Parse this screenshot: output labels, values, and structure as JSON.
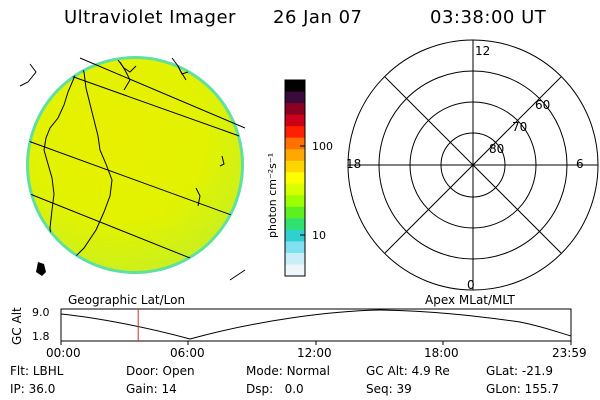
{
  "header": {
    "title": "Ultraviolet Imager",
    "date": "26 Jan 07",
    "time": "03:38:00 UT"
  },
  "colorbar": {
    "unit_label": "photon cm⁻²s⁻¹",
    "tick_labels": [
      "100",
      "10"
    ],
    "colors": [
      "#000000",
      "#3a0a3a",
      "#8a0020",
      "#cc0018",
      "#ff2000",
      "#ff7000",
      "#ffa800",
      "#ffd600",
      "#ffff00",
      "#d6ff00",
      "#9cff00",
      "#5cf020",
      "#30e070",
      "#30d0d0",
      "#80e0f0",
      "#c8eef8",
      "#eef6fa"
    ]
  },
  "polar_plot": {
    "mlt_labels": [
      "12",
      "18",
      "6",
      "0"
    ],
    "mlat_labels": [
      "60",
      "70",
      "80"
    ]
  },
  "projection_labels": {
    "left": "Geographic Lat/Lon",
    "right": "Apex MLat/MLT"
  },
  "altitude_strip": {
    "axis_label": "GC Alt",
    "y_ticks": [
      "9.0",
      "1.8"
    ],
    "x_ticks": [
      "00:00",
      "06:00",
      "12:00",
      "18:00",
      "23:59"
    ],
    "current_time_hours": 3.633
  },
  "status": {
    "row1": [
      {
        "key": "Flt:",
        "value": "LBHL"
      },
      {
        "key": "Door:",
        "value": "Open"
      },
      {
        "key": "Mode:",
        "value": "Normal"
      },
      {
        "key": "GC Alt:",
        "value": "4.9 Re"
      },
      {
        "key": "GLat:",
        "value": "-21.9"
      }
    ],
    "row2": [
      {
        "key": "IP:",
        "value": "36.0"
      },
      {
        "key": "Gain:",
        "value": "14"
      },
      {
        "key": "Dsp:",
        "value": "0.0"
      },
      {
        "key": "Seq:",
        "value": "39"
      },
      {
        "key": "GLon:",
        "value": "155.7"
      }
    ]
  }
}
